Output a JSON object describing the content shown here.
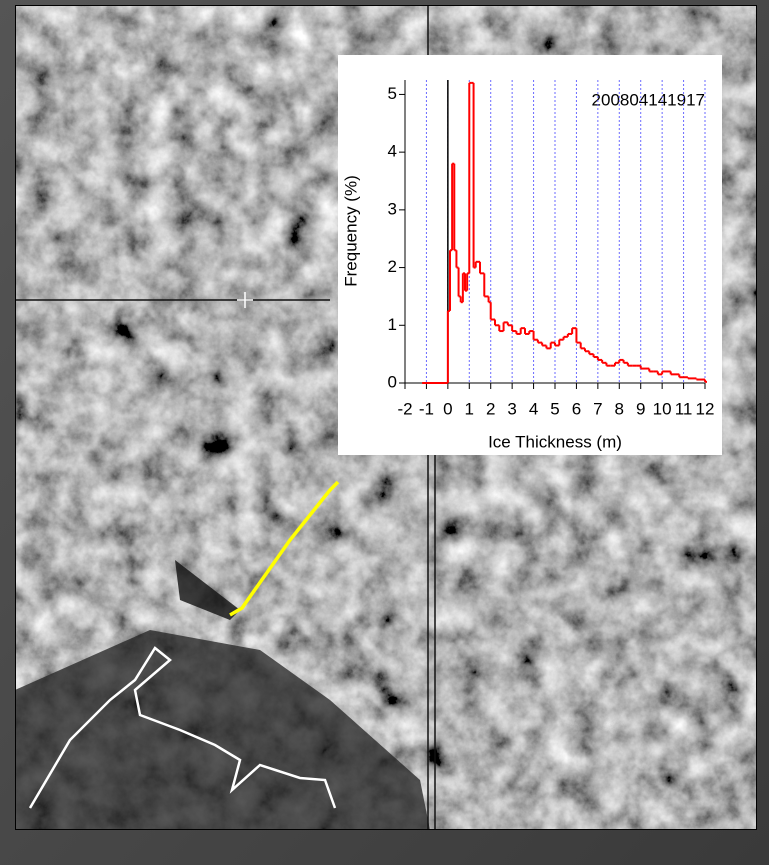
{
  "chart_data": {
    "type": "line",
    "step": true,
    "annotation": "200804141917",
    "xlabel": "Ice Thickness (m)",
    "ylabel": "Frequency (%)",
    "x": [
      -1.2,
      0,
      0.1,
      0.2,
      0.3,
      0.4,
      0.5,
      0.6,
      0.7,
      0.8,
      0.9,
      1.0,
      1.1,
      1.2,
      1.3,
      1.5,
      1.7,
      1.9,
      2.0,
      2.2,
      2.4,
      2.6,
      2.8,
      3.0,
      3.2,
      3.4,
      3.6,
      3.8,
      4.0,
      4.2,
      4.4,
      4.6,
      4.8,
      5.0,
      5.2,
      5.4,
      5.6,
      5.8,
      6.0,
      6.2,
      6.4,
      6.6,
      6.8,
      7.0,
      7.2,
      7.4,
      7.6,
      7.8,
      8.0,
      8.2,
      8.4,
      8.6,
      8.8,
      9.0,
      9.2,
      9.4,
      9.6,
      9.8,
      10.0,
      10.4,
      10.8,
      11.2,
      11.6,
      12.0
    ],
    "values": [
      0,
      1.25,
      2.3,
      3.8,
      2.3,
      2.0,
      1.5,
      1.4,
      1.9,
      1.6,
      1.9,
      5.2,
      5.2,
      2.0,
      2.1,
      1.9,
      1.5,
      1.4,
      1.1,
      1.0,
      0.9,
      1.05,
      1.0,
      0.9,
      0.85,
      0.95,
      0.85,
      0.9,
      0.75,
      0.7,
      0.65,
      0.6,
      0.7,
      0.65,
      0.75,
      0.8,
      0.85,
      0.95,
      0.7,
      0.6,
      0.55,
      0.5,
      0.45,
      0.4,
      0.35,
      0.3,
      0.3,
      0.35,
      0.4,
      0.35,
      0.3,
      0.3,
      0.3,
      0.25,
      0.25,
      0.2,
      0.2,
      0.15,
      0.2,
      0.15,
      0.1,
      0.08,
      0.06,
      0.02
    ],
    "color": "#ff0000",
    "xlim": [
      -2,
      12
    ],
    "xticks": [
      -2,
      -1,
      0,
      1,
      2,
      3,
      4,
      5,
      6,
      7,
      8,
      9,
      10,
      11,
      12
    ],
    "ylim": [
      0,
      5.25
    ],
    "yticks": [
      0,
      1,
      2,
      3,
      4,
      5
    ],
    "grid": "x",
    "grid_color": "#6a6aff",
    "vline": 0
  }
}
